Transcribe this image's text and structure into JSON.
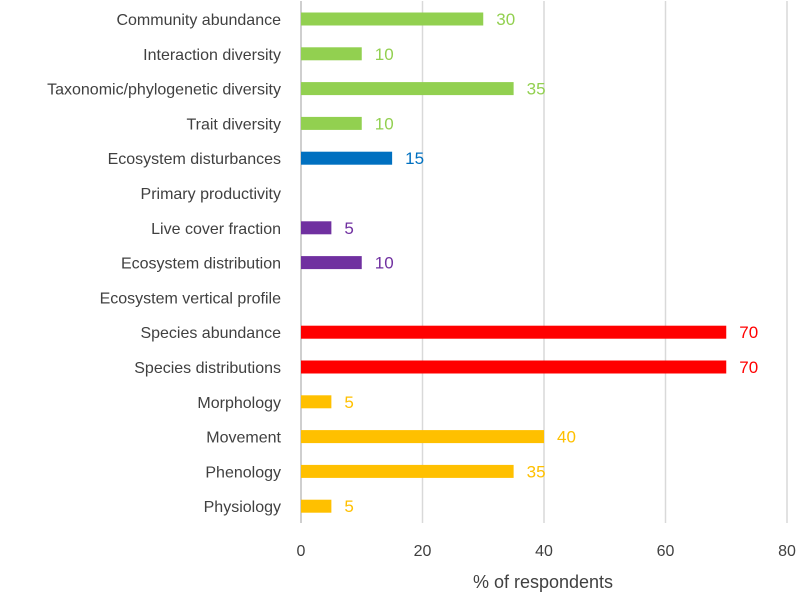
{
  "chart_data": {
    "type": "bar",
    "orientation": "horizontal",
    "categories": [
      "Community abundance",
      "Interaction diversity",
      "Taxonomic/phylogenetic diversity",
      "Trait diversity",
      "Ecosystem disturbances",
      "Primary productivity",
      "Live cover fraction",
      "Ecosystem distribution",
      "Ecosystem vertical profile",
      "Species abundance",
      "Species distributions",
      "Morphology",
      "Movement",
      "Phenology",
      "Physiology"
    ],
    "values": [
      30,
      10,
      35,
      10,
      15,
      null,
      5,
      10,
      null,
      70,
      70,
      5,
      40,
      35,
      5
    ],
    "value_labels": [
      "30",
      "10",
      "35",
      "10",
      "15",
      "",
      "5",
      "10",
      "",
      "70",
      "70",
      "5",
      "40",
      "35",
      "5"
    ],
    "bar_colors": [
      "#92d050",
      "#92d050",
      "#92d050",
      "#92d050",
      "#0070c0",
      "#0070c0",
      "#7030a0",
      "#7030a0",
      "#7030a0",
      "#ff0000",
      "#ff0000",
      "#ffc000",
      "#ffc000",
      "#ffc000",
      "#ffc000"
    ],
    "xlabel": "% of respondents",
    "ylabel": "",
    "xlim": [
      0,
      80
    ],
    "x_ticks": [
      0,
      20,
      40,
      60,
      80
    ],
    "grid": "vertical"
  }
}
